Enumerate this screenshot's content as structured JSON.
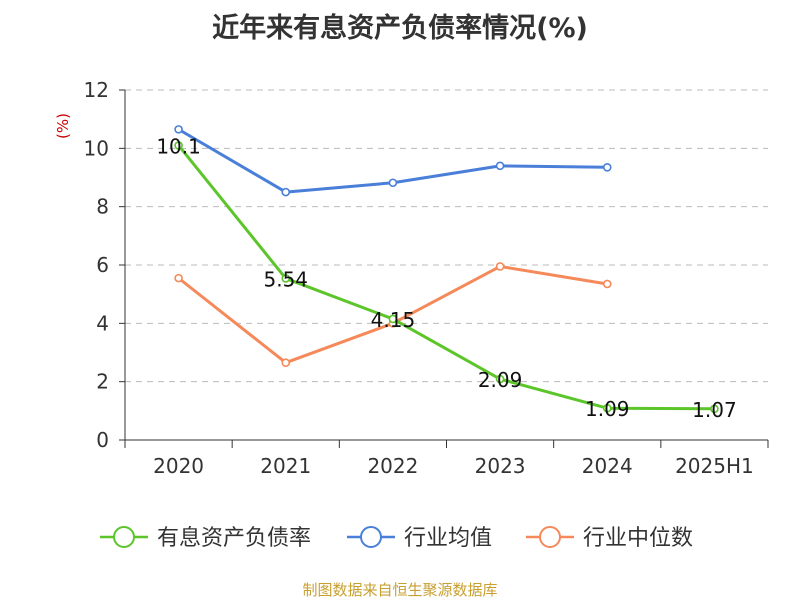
{
  "chart_data": {
    "type": "line",
    "title": "近年来有息资产负债率情况(%)",
    "ylabel": "(%)",
    "xlabel": "",
    "categories": [
      "2020",
      "2021",
      "2022",
      "2023",
      "2024",
      "2025H1"
    ],
    "ylim": [
      0,
      12
    ],
    "yticks": [
      "0",
      "2",
      "4",
      "6",
      "8",
      "10",
      "12"
    ],
    "grid": true,
    "legend_position": "bottom",
    "series": [
      {
        "name": "有息资产负债率",
        "color": "#5cc52a",
        "values": [
          10.1,
          5.54,
          4.15,
          2.09,
          1.09,
          1.07
        ],
        "labels": [
          "10.1",
          "5.54",
          "4.15",
          "2.09",
          "1.09",
          "1.07"
        ]
      },
      {
        "name": "行业均值",
        "color": "#4a7fd9",
        "values": [
          10.65,
          8.5,
          8.82,
          9.4,
          9.35,
          null
        ],
        "labels": []
      },
      {
        "name": "行业中位数",
        "color": "#f5895a",
        "values": [
          5.55,
          2.65,
          4.0,
          5.95,
          5.35,
          null
        ],
        "labels": []
      }
    ],
    "source": "制图数据来自恒生聚源数据库"
  },
  "colors": {
    "axis": "#333333",
    "grid": "#bbbbbb",
    "ylabel": "#cc0000",
    "source": "#c8a030"
  }
}
